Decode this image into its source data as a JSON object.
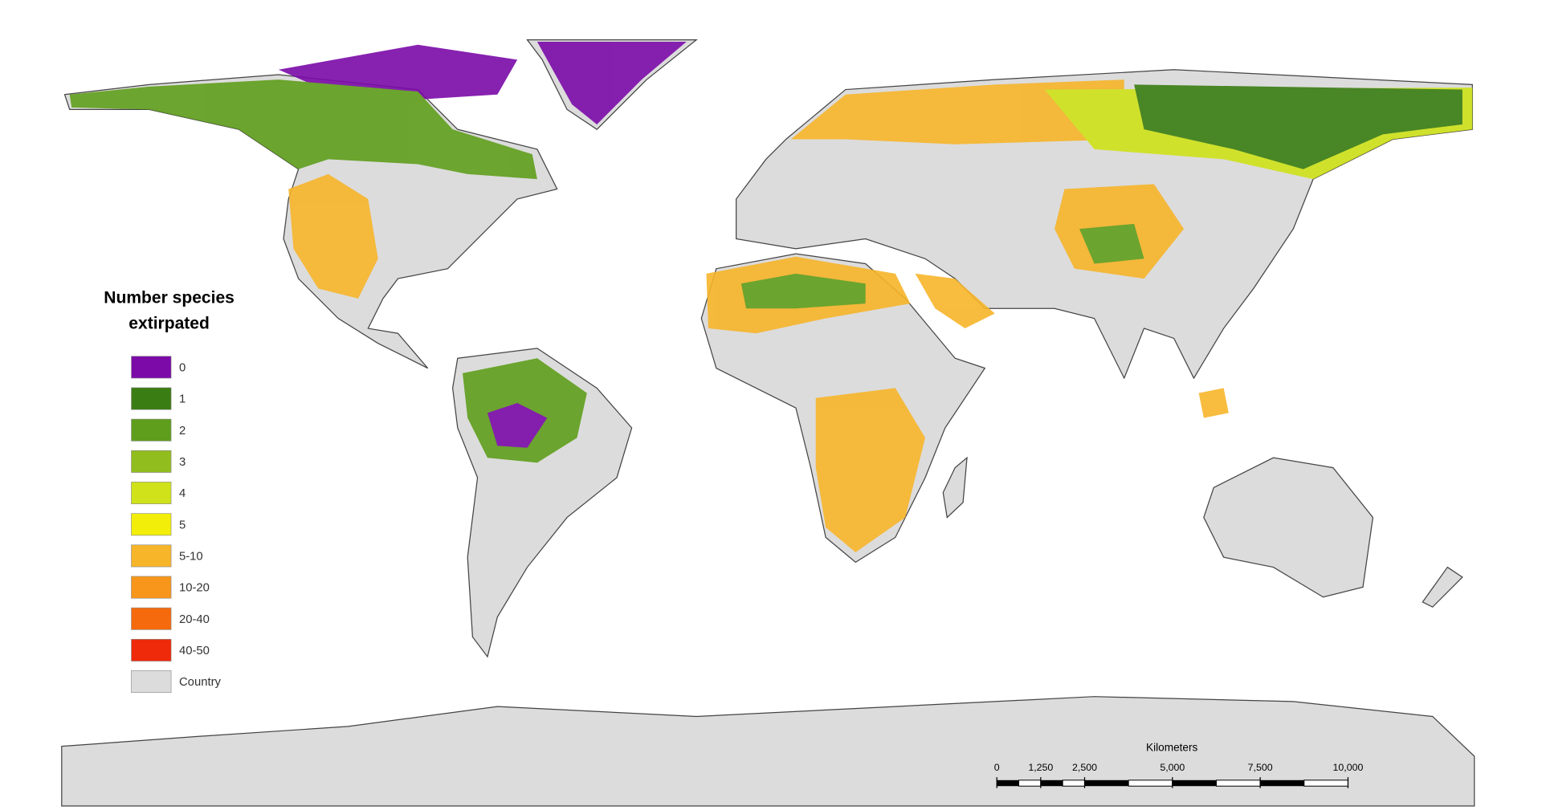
{
  "legend": {
    "title_lines": [
      "Number species",
      "extirpated"
    ],
    "items": [
      {
        "label": "0",
        "color": "#7b0aa8"
      },
      {
        "label": "1",
        "color": "#3a7d12"
      },
      {
        "label": "2",
        "color": "#5f9e1c"
      },
      {
        "label": "3",
        "color": "#92bd1e"
      },
      {
        "label": "4",
        "color": "#cfe21a"
      },
      {
        "label": "5",
        "color": "#f2ee0a"
      },
      {
        "label": "5-10",
        "color": "#f7b52a"
      },
      {
        "label": "10-20",
        "color": "#f7961a"
      },
      {
        "label": "20-40",
        "color": "#f56a0c"
      },
      {
        "label": "40-50",
        "color": "#ee2a0a"
      },
      {
        "label": "Country",
        "color": "#dcdcdc"
      }
    ]
  },
  "scale_bar": {
    "title": "Kilometers",
    "ticks": [
      0,
      {
        "value": 1250,
        "label": "1,250"
      },
      {
        "value": 2500,
        "label": "2,500"
      },
      {
        "value": 5000,
        "label": "5,000"
      },
      {
        "value": 7500,
        "label": "7,500"
      },
      {
        "value": 10000,
        "label": "10,000"
      }
    ]
  }
}
